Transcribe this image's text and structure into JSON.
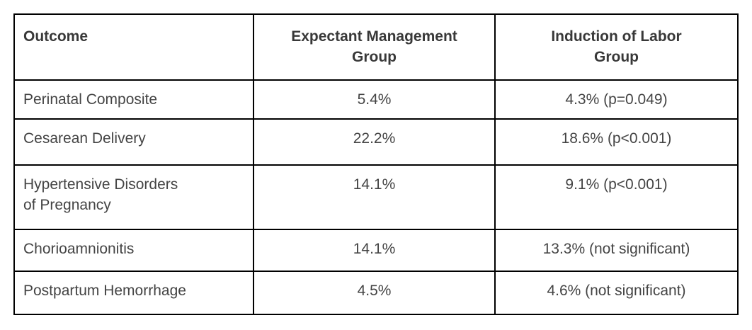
{
  "table": {
    "header": {
      "outcome": "Outcome",
      "expectant": "Expectant Management\nGroup",
      "induction": "Induction of Labor\nGroup"
    },
    "rows": [
      {
        "outcome": "Perinatal Composite",
        "expectant": "5.4%",
        "induction": "4.3% (p=0.049)"
      },
      {
        "outcome": "Cesarean Delivery",
        "expectant": "22.2%",
        "induction": "18.6% (p<0.001)"
      },
      {
        "outcome": "Hypertensive Disorders\nof Pregnancy",
        "expectant": "14.1%",
        "induction": "9.1% (p<0.001)"
      },
      {
        "outcome": "Chorioamnionitis",
        "expectant": "14.1%",
        "induction": "13.3% (not significant)"
      },
      {
        "outcome": "Postpartum Hemorrhage",
        "expectant": "4.5%",
        "induction": "4.6% (not significant)"
      }
    ],
    "colors": {
      "border": "#000000",
      "header_text": "#383838",
      "body_text": "#444444",
      "background": "#ffffff"
    }
  }
}
